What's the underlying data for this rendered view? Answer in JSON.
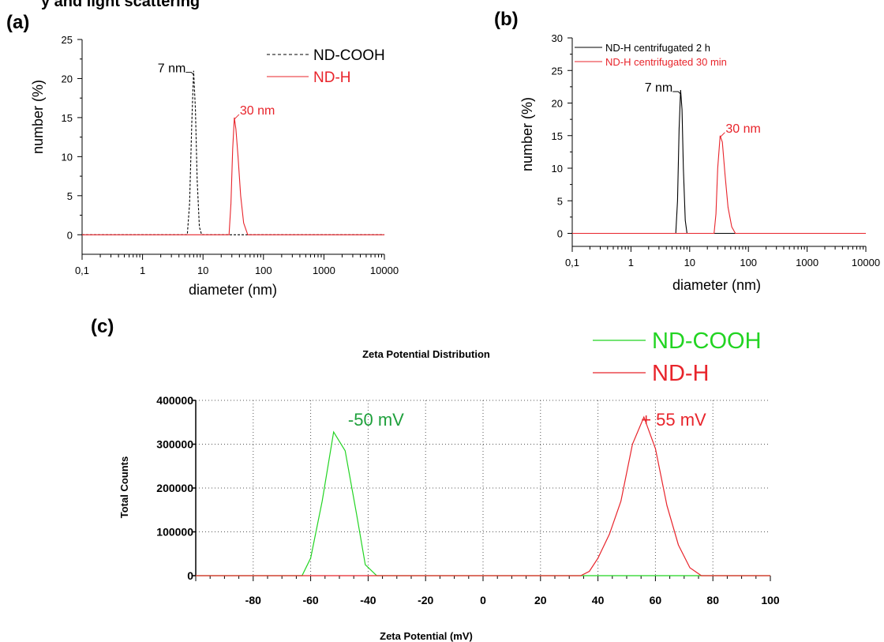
{
  "top_fragment": "y and light scattering",
  "colors": {
    "black": "#000000",
    "red": "#e8242b",
    "green": "#22d422",
    "label_green": "#1fa03c"
  },
  "chart_data": [
    {
      "panel": "(a)",
      "type": "line",
      "xlabel": "diameter (nm)",
      "ylabel": "number (%)",
      "x_scale": "log",
      "xlim": [
        0.1,
        10000
      ],
      "ylim": [
        -2.5,
        25
      ],
      "x_ticks": [
        0.1,
        1,
        10,
        100,
        1000,
        10000
      ],
      "x_tick_labels": [
        "0,1",
        "1",
        "10",
        "100",
        "1000",
        "10000"
      ],
      "y_ticks": [
        0,
        5,
        10,
        15,
        20,
        25
      ],
      "y_tick_labels": [
        "0",
        "5",
        "10",
        "15",
        "20",
        "25"
      ],
      "legend": {
        "placement": "top-right",
        "entries": [
          "ND-COOH",
          "ND-H"
        ]
      },
      "series": [
        {
          "name": "ND-COOH",
          "color": "#000000",
          "dash": true,
          "x": [
            0.1,
            5.5,
            6.0,
            6.5,
            7.0,
            7.5,
            8.0,
            8.7,
            9.5,
            10000
          ],
          "y": [
            0,
            0,
            4,
            14,
            21,
            16,
            7,
            1,
            0,
            0
          ]
        },
        {
          "name": "ND-H",
          "color": "#e8242b",
          "dash": false,
          "x": [
            0.1,
            27,
            29,
            31,
            33,
            35,
            38,
            42,
            47,
            55,
            10000
          ],
          "y": [
            0,
            0,
            4,
            11,
            15,
            13.5,
            10,
            5,
            1.5,
            0,
            0
          ]
        }
      ],
      "annotations": [
        {
          "text": "7 nm",
          "x": 7,
          "y": 21,
          "color": "#000000"
        },
        {
          "text": "30 nm",
          "x": 33,
          "y": 15,
          "color": "#e8242b"
        }
      ]
    },
    {
      "panel": "(b)",
      "type": "line",
      "xlabel": "diameter (nm)",
      "ylabel": "number (%)",
      "x_scale": "log",
      "xlim": [
        0.1,
        10000
      ],
      "ylim": [
        -2,
        30
      ],
      "x_ticks": [
        0.1,
        1,
        10,
        100,
        1000,
        10000
      ],
      "x_tick_labels": [
        "0,1",
        "1",
        "10",
        "100",
        "1000",
        "10000"
      ],
      "y_ticks": [
        0,
        5,
        10,
        15,
        20,
        25,
        30
      ],
      "y_tick_labels": [
        "0",
        "5",
        "10",
        "15",
        "20",
        "25",
        "30"
      ],
      "legend": {
        "placement": "top-left",
        "entries": [
          "ND-H centrifugated 2 h",
          "ND-H centrifugated 30 min"
        ]
      },
      "series": [
        {
          "name": "ND-H centrifugated 2 h",
          "color": "#000000",
          "dash": false,
          "x": [
            0.1,
            5.8,
            6.2,
            6.6,
            7.0,
            7.4,
            7.8,
            8.4,
            9.0,
            10000
          ],
          "y": [
            0,
            0,
            5,
            16,
            22,
            19,
            10,
            2,
            0,
            0
          ]
        },
        {
          "name": "ND-H centrifugated 30 min",
          "color": "#e8242b",
          "dash": false,
          "x": [
            0.1,
            26,
            28,
            30,
            33,
            36,
            40,
            45,
            52,
            60,
            10000
          ],
          "y": [
            0,
            0,
            3,
            10,
            15,
            14,
            9,
            4,
            1,
            0,
            0
          ]
        }
      ],
      "annotations": [
        {
          "text": "7 nm",
          "x": 7,
          "y": 22,
          "color": "#000000"
        },
        {
          "text": "30 nm",
          "x": 33,
          "y": 15,
          "color": "#e8242b"
        }
      ]
    },
    {
      "panel": "(c)",
      "type": "line",
      "title": "Zeta Potential Distribution",
      "xlabel": "Zeta Potential (mV)",
      "ylabel": "Total Counts",
      "xlim": [
        -100,
        100
      ],
      "ylim": [
        0,
        400000
      ],
      "grid": true,
      "x_ticks": [
        -80,
        -60,
        -40,
        -20,
        0,
        20,
        40,
        60,
        80,
        100
      ],
      "x_tick_labels": [
        "-80",
        "-60",
        "-40",
        "-20",
        "0",
        "20",
        "40",
        "60",
        "80",
        "100"
      ],
      "y_ticks": [
        0,
        100000,
        200000,
        300000,
        400000
      ],
      "y_tick_labels": [
        "0",
        "100000",
        "200000",
        "300000",
        "400000"
      ],
      "legend": {
        "placement": "top-right",
        "entries": [
          "ND-COOH",
          "ND-H"
        ]
      },
      "series": [
        {
          "name": "ND-COOH",
          "color": "#22d422",
          "x": [
            -100,
            -63,
            -60,
            -56,
            -52,
            -48,
            -44,
            -41,
            -37,
            100
          ],
          "y": [
            0,
            0,
            40000,
            170000,
            328000,
            285000,
            140000,
            25000,
            0,
            0
          ]
        },
        {
          "name": "ND-H",
          "color": "#e8242b",
          "x": [
            -100,
            -63,
            -60,
            -37,
            34,
            37,
            40,
            44,
            48,
            52,
            56,
            60,
            64,
            68,
            72,
            76,
            100
          ],
          "y": [
            0,
            0,
            0,
            0,
            0,
            10000,
            40000,
            95000,
            170000,
            300000,
            362000,
            290000,
            160000,
            70000,
            18000,
            0,
            0
          ]
        }
      ],
      "annotations": [
        {
          "text": "-50 mV",
          "x": -50,
          "y": 350000,
          "color": "#1fa03c"
        },
        {
          "text": "+ 55 mV",
          "x": 55,
          "y": 350000,
          "color": "#e8242b"
        }
      ]
    }
  ]
}
